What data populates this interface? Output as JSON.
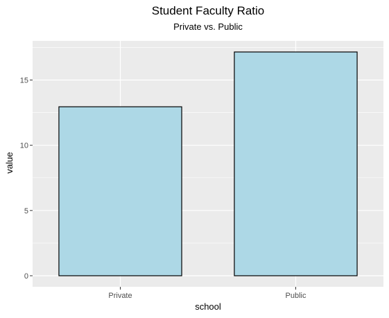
{
  "chart_data": {
    "type": "bar",
    "title": "Student Faculty Ratio",
    "subtitle": "Private vs. Public",
    "xlabel": "school",
    "ylabel": "value",
    "categories": [
      "Private",
      "Public"
    ],
    "values": [
      12.95,
      17.15
    ],
    "ylim": [
      -0.85,
      18.0
    ],
    "yticks": [
      0,
      5,
      10,
      15
    ],
    "ytick_labels": [
      "0",
      "5",
      "10",
      "15"
    ],
    "grid": true,
    "colors": {
      "panel_background": "#ebebeb",
      "grid_major": "#ffffff",
      "bar_fill": "#add8e6",
      "bar_stroke": "#000000",
      "tick_text": "#4d4d4d",
      "tick_mark": "#333333"
    }
  }
}
